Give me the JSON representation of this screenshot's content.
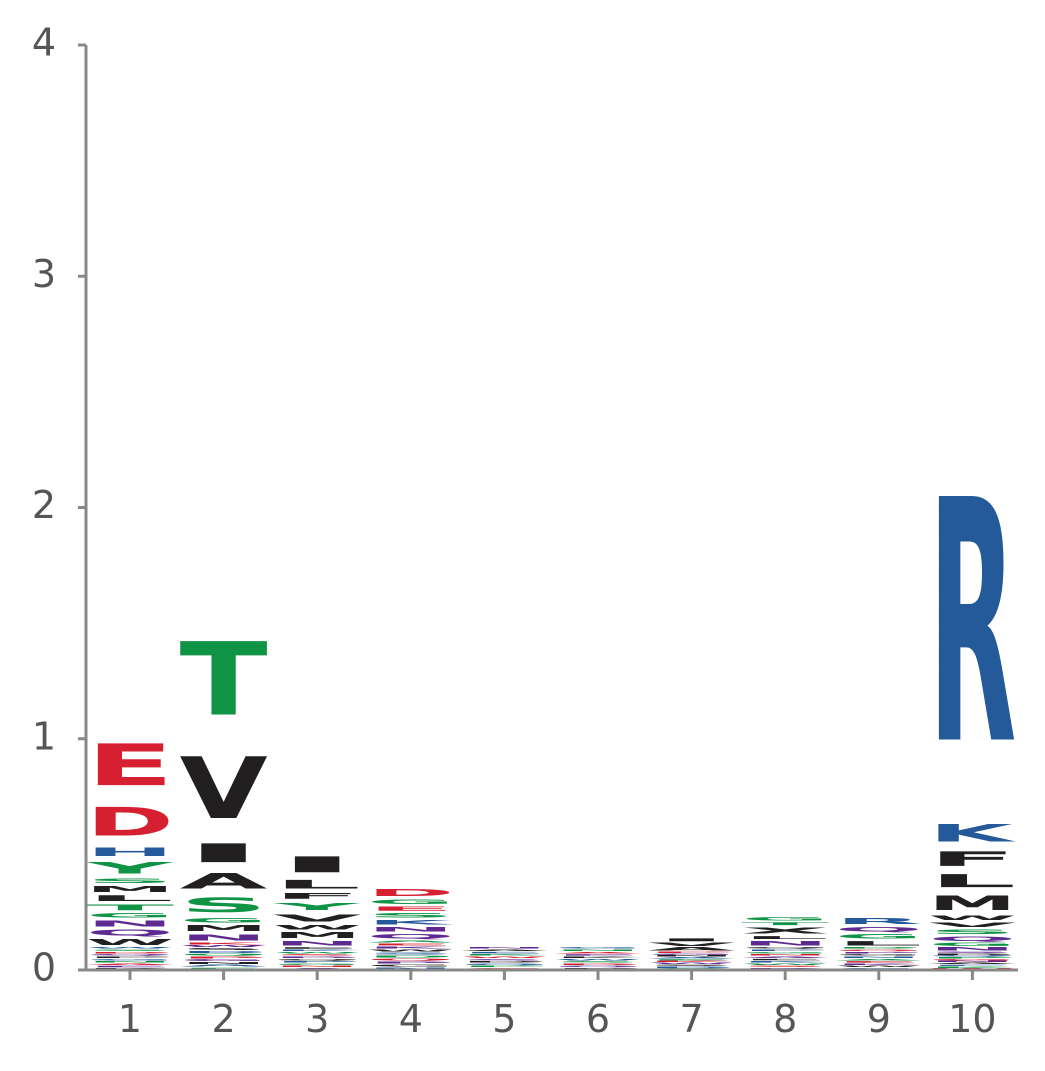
{
  "chart_data": {
    "type": "sequence-logo",
    "title": "",
    "xlabel": "",
    "ylabel": "",
    "ylim": [
      0,
      4
    ],
    "yticks": [
      "0",
      "1",
      "2",
      "3",
      "4"
    ],
    "positions": [
      "1",
      "2",
      "3",
      "4",
      "5",
      "6",
      "7",
      "8",
      "9",
      "10"
    ],
    "colors": {
      "acidic": "#d62031",
      "polar": "#0f9446",
      "basic": "#245a99",
      "hydrophobic": "#221f20",
      "amide": "#5e2a90",
      "noise": [
        "#221f20",
        "#0f9446",
        "#5e2a90",
        "#245a99",
        "#d62031"
      ]
    },
    "columns": [
      {
        "position": "1",
        "noise_total": 0.1,
        "stack": [
          {
            "letter": "W",
            "height": 0.04,
            "color": "#221f20"
          },
          {
            "letter": "Q",
            "height": 0.04,
            "color": "#5e2a90"
          },
          {
            "letter": "N",
            "height": 0.04,
            "color": "#5e2a90"
          },
          {
            "letter": "G",
            "height": 0.03,
            "color": "#0f9446"
          },
          {
            "letter": "T",
            "height": 0.04,
            "color": "#0f9446"
          },
          {
            "letter": "L",
            "height": 0.04,
            "color": "#221f20"
          },
          {
            "letter": "M",
            "height": 0.04,
            "color": "#221f20"
          },
          {
            "letter": "S",
            "height": 0.03,
            "color": "#0f9446"
          },
          {
            "letter": "Y",
            "height": 0.08,
            "color": "#0f9446"
          },
          {
            "letter": "H",
            "height": 0.06,
            "color": "#245a99"
          },
          {
            "letter": "D",
            "height": 0.2,
            "color": "#d62031"
          },
          {
            "letter": "E",
            "height": 0.29,
            "color": "#d62031"
          }
        ]
      },
      {
        "position": "2",
        "noise_total": 0.12,
        "stack": [
          {
            "letter": "N",
            "height": 0.04,
            "color": "#5e2a90"
          },
          {
            "letter": "M",
            "height": 0.04,
            "color": "#221f20"
          },
          {
            "letter": "G",
            "height": 0.03,
            "color": "#0f9446"
          },
          {
            "letter": "S",
            "height": 0.1,
            "color": "#0f9446"
          },
          {
            "letter": "A",
            "height": 0.11,
            "color": "#221f20"
          },
          {
            "letter": "I",
            "height": 0.13,
            "color": "#221f20"
          },
          {
            "letter": "V",
            "height": 0.43,
            "color": "#221f20"
          },
          {
            "letter": "T",
            "height": 0.51,
            "color": "#0f9446"
          }
        ]
      },
      {
        "position": "3",
        "noise_total": 0.1,
        "stack": [
          {
            "letter": "N",
            "height": 0.03,
            "color": "#5e2a90"
          },
          {
            "letter": "M",
            "height": 0.04,
            "color": "#221f20"
          },
          {
            "letter": "W",
            "height": 0.03,
            "color": "#221f20"
          },
          {
            "letter": "V",
            "height": 0.05,
            "color": "#221f20"
          },
          {
            "letter": "Y",
            "height": 0.05,
            "color": "#0f9446"
          },
          {
            "letter": "F",
            "height": 0.04,
            "color": "#221f20"
          },
          {
            "letter": "L",
            "height": 0.06,
            "color": "#221f20"
          },
          {
            "letter": "I",
            "height": 0.11,
            "color": "#221f20"
          }
        ]
      },
      {
        "position": "4",
        "noise_total": 0.13,
        "stack": [
          {
            "letter": "Q",
            "height": 0.03,
            "color": "#5e2a90"
          },
          {
            "letter": "N",
            "height": 0.03,
            "color": "#5e2a90"
          },
          {
            "letter": "K",
            "height": 0.03,
            "color": "#245a99"
          },
          {
            "letter": "S",
            "height": 0.03,
            "color": "#0f9446"
          },
          {
            "letter": "E",
            "height": 0.03,
            "color": "#d62031"
          },
          {
            "letter": "G",
            "height": 0.03,
            "color": "#0f9446"
          },
          {
            "letter": "D",
            "height": 0.05,
            "color": "#d62031"
          }
        ]
      },
      {
        "position": "5",
        "noise_total": 0.1,
        "stack": []
      },
      {
        "position": "6",
        "noise_total": 0.1,
        "stack": []
      },
      {
        "position": "7",
        "noise_total": 0.08,
        "stack": [
          {
            "letter": "A",
            "height": 0.02,
            "color": "#221f20"
          },
          {
            "letter": "V",
            "height": 0.02,
            "color": "#221f20"
          },
          {
            "letter": "I",
            "height": 0.02,
            "color": "#221f20"
          }
        ]
      },
      {
        "position": "8",
        "noise_total": 0.1,
        "stack": [
          {
            "letter": "N",
            "height": 0.03,
            "color": "#5e2a90"
          },
          {
            "letter": "L",
            "height": 0.02,
            "color": "#221f20"
          },
          {
            "letter": "X",
            "height": 0.04,
            "color": "#221f20"
          },
          {
            "letter": "T",
            "height": 0.02,
            "color": "#0f9446"
          },
          {
            "letter": "G",
            "height": 0.02,
            "color": "#0f9446"
          }
        ]
      },
      {
        "position": "9",
        "noise_total": 0.1,
        "stack": [
          {
            "letter": "L",
            "height": 0.03,
            "color": "#221f20"
          },
          {
            "letter": "G",
            "height": 0.03,
            "color": "#0f9446"
          },
          {
            "letter": "Q",
            "height": 0.03,
            "color": "#5e2a90"
          },
          {
            "letter": "R",
            "height": 0.04,
            "color": "#245a99"
          }
        ]
      },
      {
        "position": "10",
        "noise_total": 0.08,
        "stack": [
          {
            "letter": "N",
            "height": 0.02,
            "color": "#5e2a90"
          },
          {
            "letter": "G",
            "height": 0.02,
            "color": "#0f9446"
          },
          {
            "letter": "Q",
            "height": 0.03,
            "color": "#5e2a90"
          },
          {
            "letter": "S",
            "height": 0.03,
            "color": "#0f9446"
          },
          {
            "letter": "V",
            "height": 0.03,
            "color": "#221f20"
          },
          {
            "letter": "W",
            "height": 0.03,
            "color": "#221f20"
          },
          {
            "letter": "M",
            "height": 0.1,
            "color": "#221f20"
          },
          {
            "letter": "L",
            "height": 0.09,
            "color": "#221f20"
          },
          {
            "letter": "F",
            "height": 0.1,
            "color": "#221f20"
          },
          {
            "letter": "K",
            "height": 0.12,
            "color": "#245a99"
          },
          {
            "letter": "R",
            "height": 1.69,
            "color": "#245a99"
          }
        ]
      }
    ]
  }
}
